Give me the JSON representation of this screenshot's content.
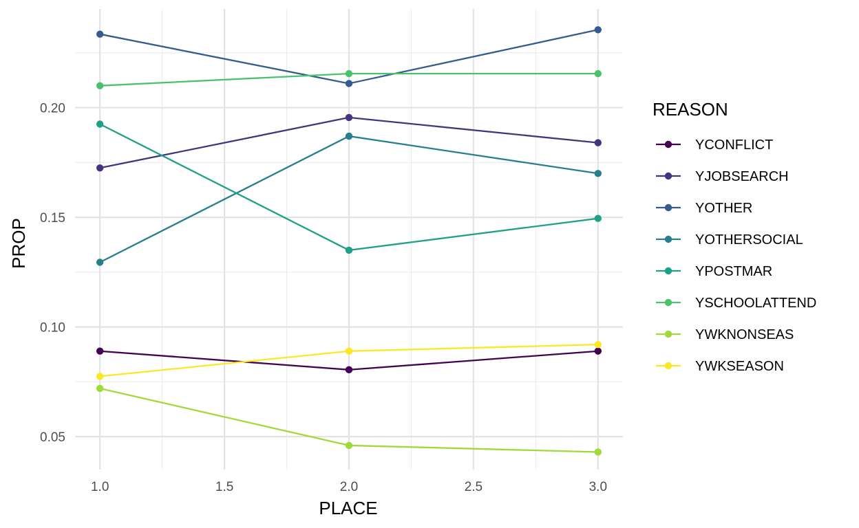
{
  "chart_data": {
    "type": "line",
    "title": "",
    "xlabel": "PLACE",
    "ylabel": "PROP",
    "xlim": [
      0.9,
      3.1
    ],
    "ylim": [
      0.035,
      0.245
    ],
    "x_ticks": [
      1.0,
      1.5,
      2.0,
      2.5,
      3.0
    ],
    "x_tick_labels": [
      "1.0",
      "1.5",
      "2.0",
      "2.5",
      "3.0"
    ],
    "y_ticks": [
      0.05,
      0.1,
      0.15,
      0.2
    ],
    "y_tick_labels": [
      "0.05",
      "0.10",
      "0.15",
      "0.20"
    ],
    "grid": true,
    "legend_title": "REASON",
    "legend_position": "right",
    "x": [
      1,
      2,
      3
    ],
    "series": [
      {
        "name": "YCONFLICT",
        "color": "#440154",
        "values": [
          0.089,
          0.0805,
          0.089
        ]
      },
      {
        "name": "YJOBSEARCH",
        "color": "#46337E",
        "values": [
          0.1725,
          0.1955,
          0.184
        ]
      },
      {
        "name": "YOTHER",
        "color": "#365C8D",
        "values": [
          0.2335,
          0.211,
          0.2355
        ]
      },
      {
        "name": "YOTHERSOCIAL",
        "color": "#277F8E",
        "values": [
          0.1295,
          0.187,
          0.17
        ]
      },
      {
        "name": "YPOSTMAR",
        "color": "#1FA187",
        "values": [
          0.1925,
          0.135,
          0.1495
        ]
      },
      {
        "name": "YSCHOOLATTEND",
        "color": "#4AC16D",
        "values": [
          0.21,
          0.2155,
          0.2155
        ]
      },
      {
        "name": "YWKNONSEAS",
        "color": "#9FDA3A",
        "values": [
          0.072,
          0.046,
          0.043
        ]
      },
      {
        "name": "YWKSEASON",
        "color": "#FDE725",
        "values": [
          0.0775,
          0.089,
          0.092
        ]
      }
    ]
  }
}
